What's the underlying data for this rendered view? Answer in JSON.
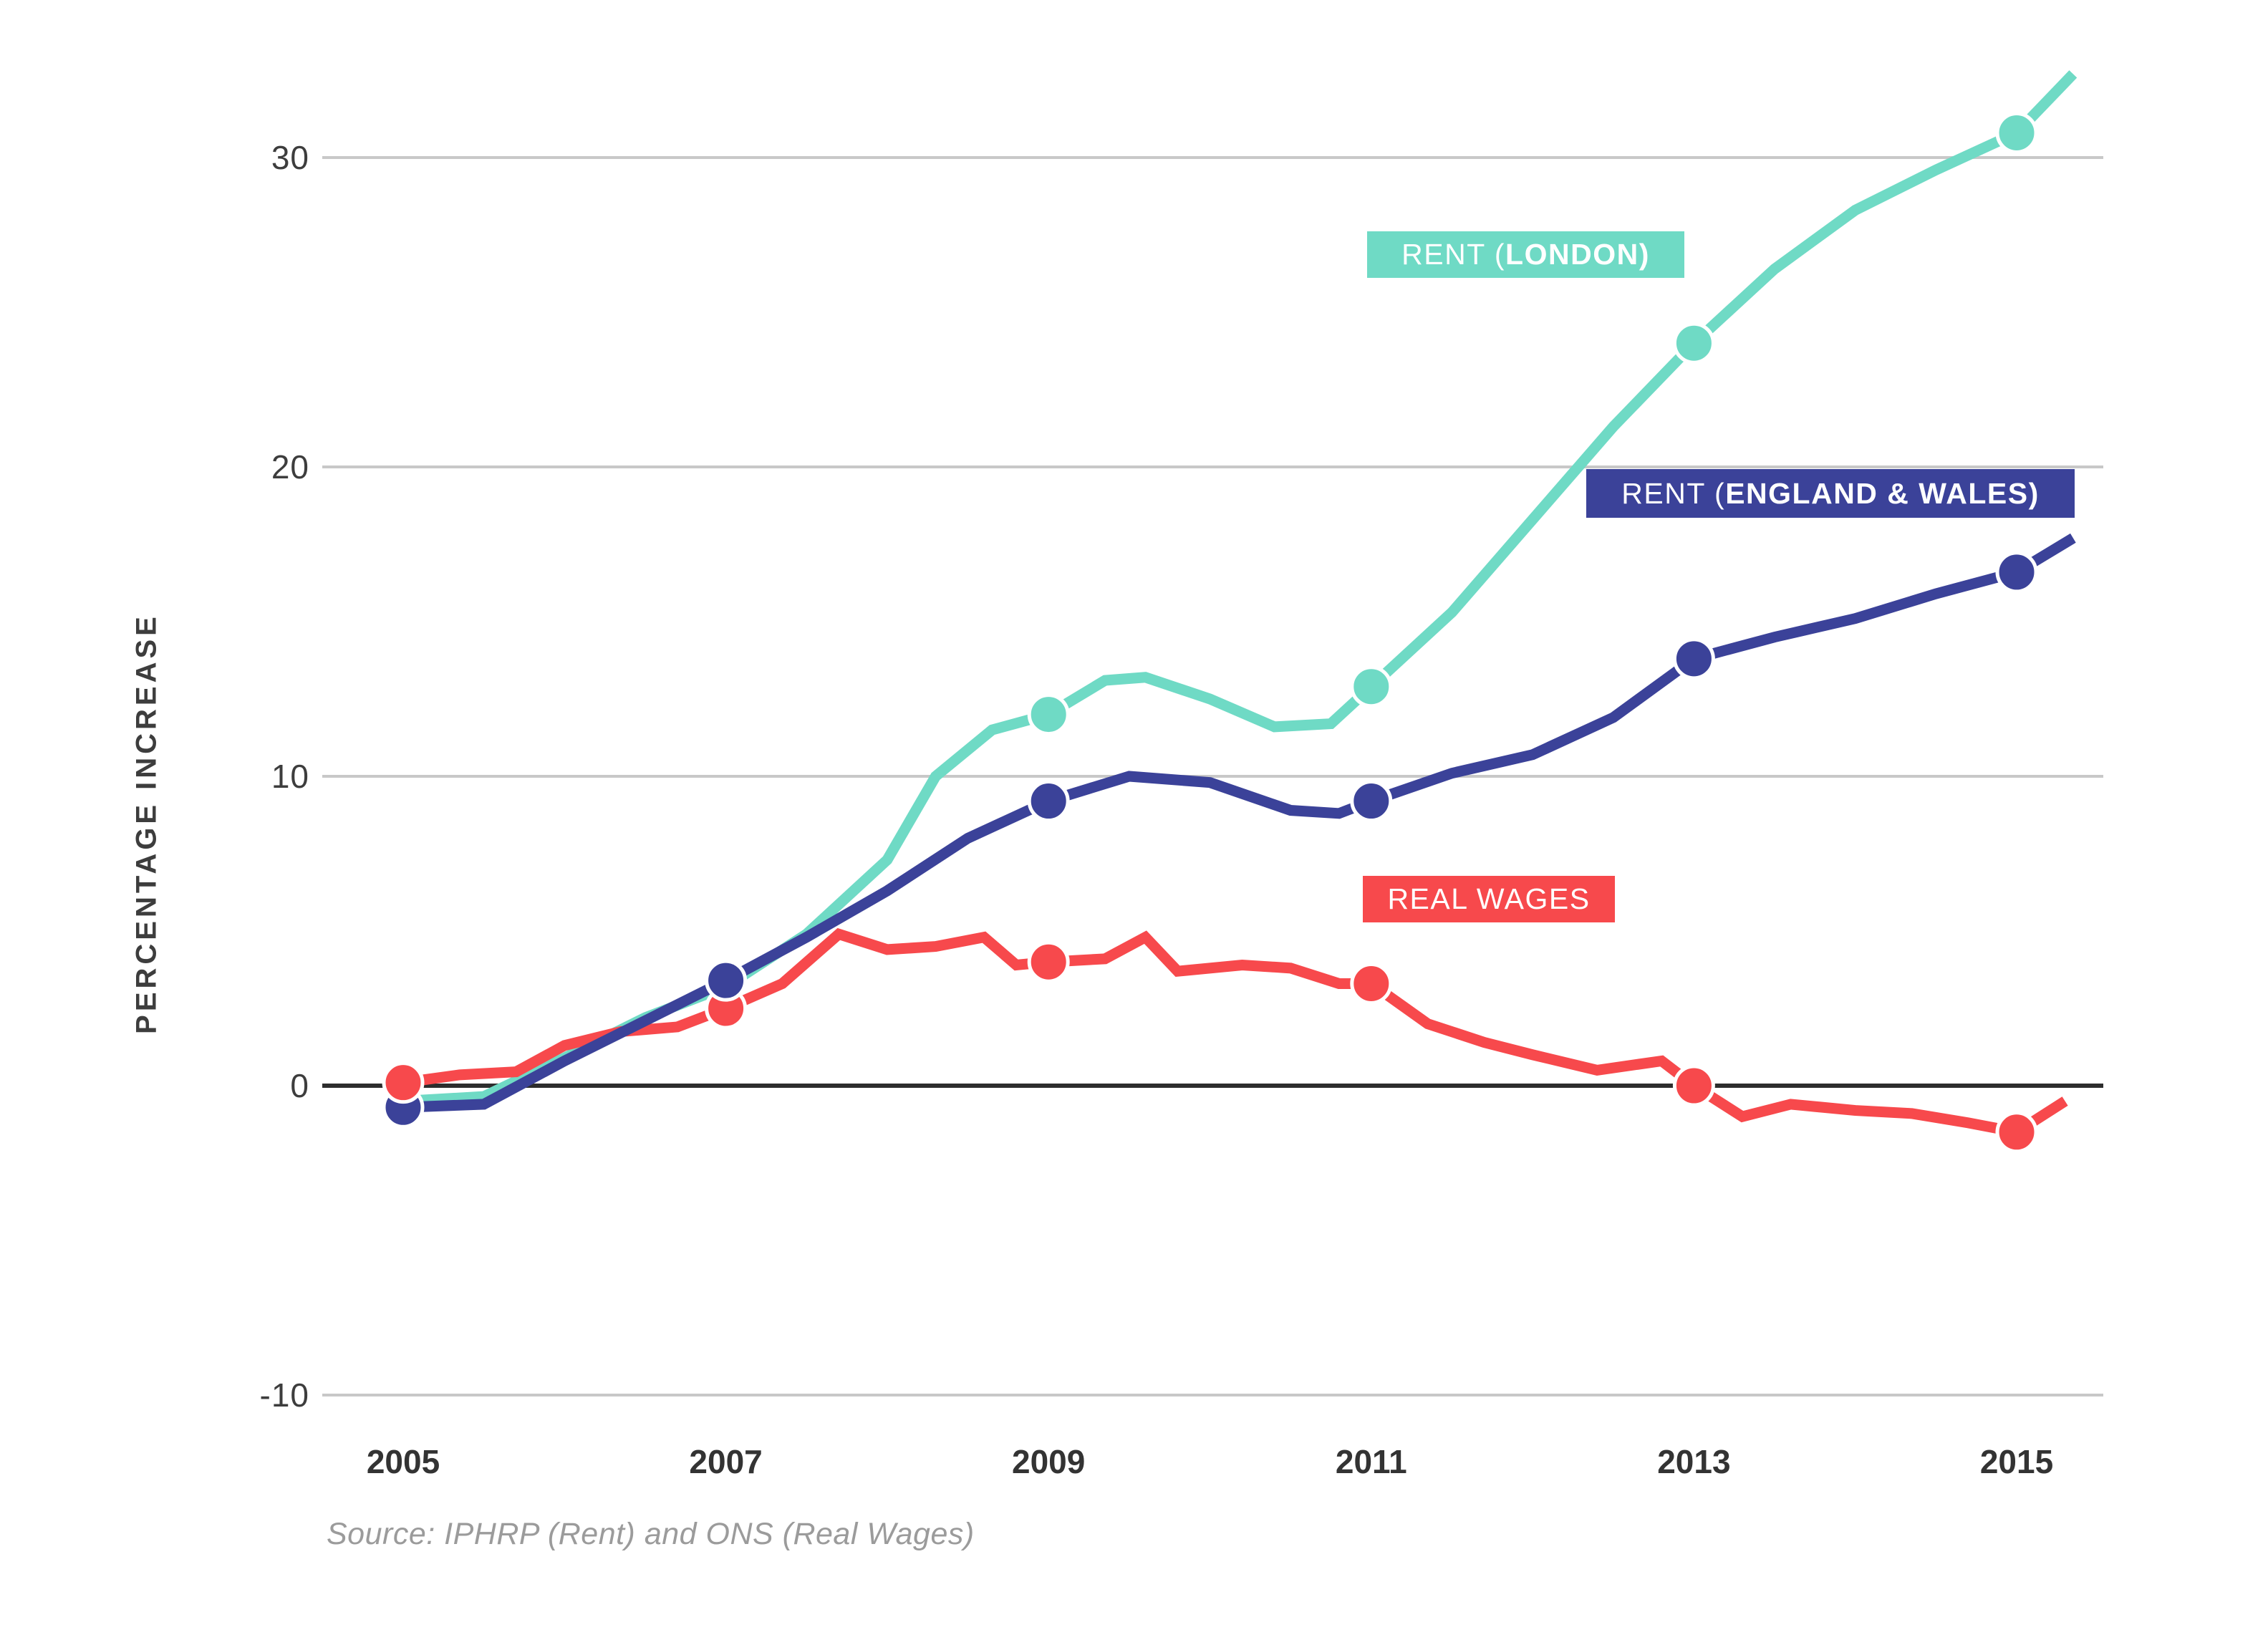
{
  "y_axis": {
    "title": "PERCENTAGE  INCREASE",
    "ticks": [
      30,
      20,
      10,
      0,
      -10
    ]
  },
  "x_axis": {
    "ticks": [
      "2005",
      "2007",
      "2009",
      "2011",
      "2013",
      "2015"
    ]
  },
  "legend": {
    "london": {
      "prefix": "RENT (",
      "bold": "LONDON)"
    },
    "ew": {
      "prefix": "RENT (",
      "bold": "ENGLAND & WALES)"
    },
    "wages": {
      "text": "REAL WAGES"
    }
  },
  "source": "Source: IPHRP (Rent) and ONS (Real Wages)",
  "colors": {
    "london": "#6FDAC5",
    "ew": "#3B4299",
    "wages": "#F7494C",
    "grid": "#C8C8C8",
    "zero_line": "#2D2D2D",
    "dot_ring": "#FFFFFF"
  },
  "chart_data": {
    "type": "line",
    "title": "",
    "xlabel": "",
    "ylabel": "PERCENTAGE INCREASE",
    "xlim": [
      2004.5,
      2015.6
    ],
    "ylim": [
      -10,
      33
    ],
    "grid": "horizontal-only",
    "legend_position": "inline-labels",
    "series": [
      {
        "key": "london",
        "name": "RENT (LONDON)",
        "points": [
          [
            2005,
            -0.5
          ],
          [
            2005.5,
            -0.35
          ],
          [
            2006,
            0.9
          ],
          [
            2006.5,
            2.2
          ],
          [
            2007,
            3.2
          ],
          [
            2007.5,
            4.9
          ],
          [
            2008,
            7.3
          ],
          [
            2008.3,
            10.0
          ],
          [
            2008.65,
            11.5
          ],
          [
            2009,
            12.0
          ],
          [
            2009.35,
            13.1
          ],
          [
            2009.6,
            13.2
          ],
          [
            2010,
            12.5
          ],
          [
            2010.4,
            11.6
          ],
          [
            2010.75,
            11.7
          ],
          [
            2011,
            12.9
          ],
          [
            2011.5,
            15.3
          ],
          [
            2012,
            18.3
          ],
          [
            2012.5,
            21.3
          ],
          [
            2013,
            24.0
          ],
          [
            2013.5,
            26.4
          ],
          [
            2014,
            28.3
          ],
          [
            2014.5,
            29.6
          ],
          [
            2015,
            30.8
          ],
          [
            2015.35,
            32.7
          ]
        ]
      },
      {
        "key": "wages",
        "name": "REAL WAGES",
        "points": [
          [
            2005,
            0.1
          ],
          [
            2005.35,
            0.35
          ],
          [
            2005.7,
            0.45
          ],
          [
            2006,
            1.3
          ],
          [
            2006.35,
            1.75
          ],
          [
            2006.7,
            1.9
          ],
          [
            2007,
            2.5
          ],
          [
            2007.35,
            3.3
          ],
          [
            2007.7,
            4.9
          ],
          [
            2008,
            4.4
          ],
          [
            2008.3,
            4.5
          ],
          [
            2008.6,
            4.8
          ],
          [
            2008.8,
            3.9
          ],
          [
            2009,
            4.0
          ],
          [
            2009.35,
            4.1
          ],
          [
            2009.6,
            4.8
          ],
          [
            2009.8,
            3.7
          ],
          [
            2010.2,
            3.9
          ],
          [
            2010.5,
            3.8
          ],
          [
            2010.8,
            3.3
          ],
          [
            2011,
            3.3
          ],
          [
            2011.35,
            2.0
          ],
          [
            2011.7,
            1.4
          ],
          [
            2012,
            1.0
          ],
          [
            2012.4,
            0.5
          ],
          [
            2012.8,
            0.8
          ],
          [
            2013,
            0.0
          ],
          [
            2013.3,
            -1.0
          ],
          [
            2013.6,
            -0.6
          ],
          [
            2014,
            -0.8
          ],
          [
            2014.35,
            -0.9
          ],
          [
            2014.7,
            -1.2
          ],
          [
            2015,
            -1.5
          ],
          [
            2015.3,
            -0.5
          ]
        ]
      },
      {
        "key": "ew",
        "name": "RENT (ENGLAND & WALES)",
        "points": [
          [
            2005,
            -0.7
          ],
          [
            2005.5,
            -0.6
          ],
          [
            2006,
            0.8
          ],
          [
            2006.5,
            2.1
          ],
          [
            2007,
            3.4
          ],
          [
            2007.5,
            4.8
          ],
          [
            2008,
            6.3
          ],
          [
            2008.5,
            8.0
          ],
          [
            2009,
            9.2
          ],
          [
            2009.5,
            10.0
          ],
          [
            2010,
            9.8
          ],
          [
            2010.5,
            8.9
          ],
          [
            2010.8,
            8.8
          ],
          [
            2011,
            9.2
          ],
          [
            2011.5,
            10.1
          ],
          [
            2012,
            10.7
          ],
          [
            2012.5,
            11.9
          ],
          [
            2013,
            13.8
          ],
          [
            2013.5,
            14.5
          ],
          [
            2014,
            15.1
          ],
          [
            2014.5,
            15.9
          ],
          [
            2015,
            16.6
          ],
          [
            2015.35,
            17.7
          ]
        ]
      }
    ],
    "dots": [
      {
        "series": "ew",
        "x": 2005,
        "y": -0.7
      },
      {
        "series": "wages",
        "x": 2005,
        "y": 0.1
      },
      {
        "series": "wages",
        "x": 2007,
        "y": 2.5
      },
      {
        "series": "ew",
        "x": 2007,
        "y": 3.4
      },
      {
        "series": "london",
        "x": 2009,
        "y": 12.0
      },
      {
        "series": "ew",
        "x": 2009,
        "y": 9.2
      },
      {
        "series": "wages",
        "x": 2009,
        "y": 4.0
      },
      {
        "series": "london",
        "x": 2011,
        "y": 12.9
      },
      {
        "series": "ew",
        "x": 2011,
        "y": 9.2
      },
      {
        "series": "wages",
        "x": 2011,
        "y": 3.3
      },
      {
        "series": "london",
        "x": 2013,
        "y": 24.0
      },
      {
        "series": "ew",
        "x": 2013,
        "y": 13.8
      },
      {
        "series": "wages",
        "x": 2013,
        "y": 0.0
      },
      {
        "series": "london",
        "x": 2015,
        "y": 30.8
      },
      {
        "series": "ew",
        "x": 2015,
        "y": 16.6
      },
      {
        "series": "wages",
        "x": 2015,
        "y": -1.5
      }
    ]
  }
}
